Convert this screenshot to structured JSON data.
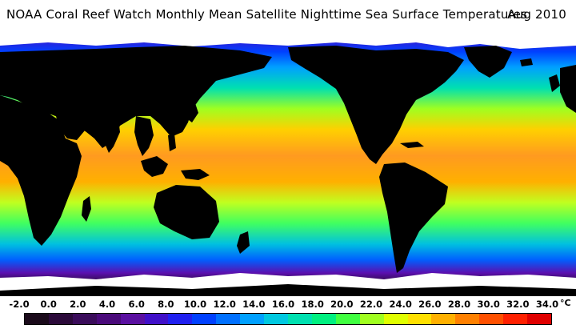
{
  "title": {
    "text": "NOAA Coral Reef Watch Monthly Mean Satellite Nighttime Sea Surface Temperatures",
    "date": "Aug 2010"
  },
  "legend": {
    "unit": "°C",
    "ticks": [
      "-2.0",
      "0.0",
      "2.0",
      "4.0",
      "6.0",
      "8.0",
      "10.0",
      "12.0",
      "14.0",
      "16.0",
      "18.0",
      "20.0",
      "22.0",
      "24.0",
      "26.0",
      "28.0",
      "30.0",
      "32.0",
      "34.0"
    ],
    "colors": [
      "#1a0a1a",
      "#2b0a3a",
      "#3a0c5a",
      "#4a0a7a",
      "#5a10a0",
      "#4010c8",
      "#2020f0",
      "#0040ff",
      "#0070ff",
      "#00a0ff",
      "#00c8e0",
      "#00e0b0",
      "#00f080",
      "#40ff40",
      "#a0ff20",
      "#e0ff00",
      "#ffe000",
      "#ffb000",
      "#ff8000",
      "#ff5000",
      "#ff2000",
      "#e00000"
    ]
  },
  "map": {
    "land_color": "#000000",
    "ice_color": "#ffffff"
  }
}
